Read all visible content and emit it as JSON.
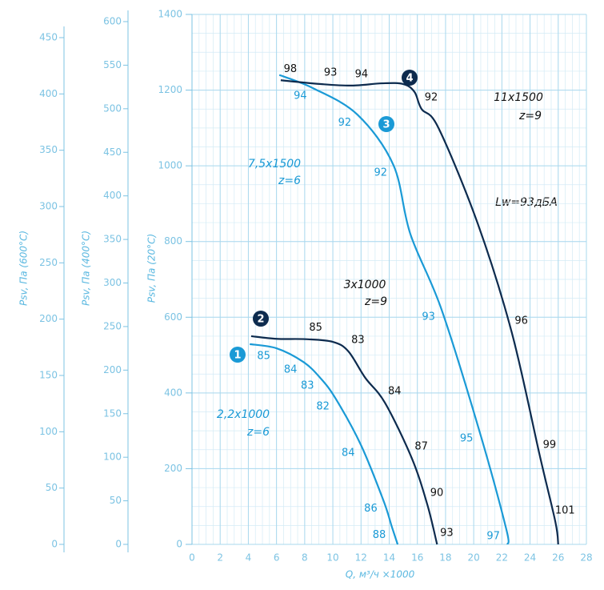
{
  "chart_data": {
    "type": "line",
    "x_title": "Q, м³/ч ×1000",
    "y_title": "Psv, Па (20°C)",
    "xlim": [
      0,
      28
    ],
    "xticks": [
      0,
      2,
      4,
      6,
      8,
      10,
      12,
      14,
      16,
      18,
      20,
      22,
      24,
      26,
      28
    ],
    "ylim": [
      0,
      1400
    ],
    "yticks": [
      0,
      200,
      400,
      600,
      800,
      1000,
      1200,
      1400
    ],
    "grid": true,
    "extra_axes": [
      {
        "title": "Psv, Па (600°C)",
        "ylim": [
          0,
          450
        ],
        "yticks": [
          0,
          50,
          100,
          150,
          200,
          250,
          300,
          350,
          400,
          450
        ]
      },
      {
        "title": "Psv, Па (400°C)",
        "ylim": [
          0,
          600
        ],
        "yticks": [
          0,
          50,
          100,
          150,
          200,
          250,
          300,
          350,
          400,
          450,
          500,
          550,
          600
        ]
      }
    ],
    "annotation": "Lw=93дБА",
    "series": [
      {
        "name": "2,2x1000",
        "z": "z=6",
        "badge": "1",
        "color": "#1a9ad6",
        "x": [
          4.1,
          6.0,
          7.9,
          9.1,
          10.2,
          12.0,
          13.6,
          14.2,
          14.6
        ],
        "values": [
          529,
          518,
          482,
          440,
          385,
          262,
          115,
          45,
          0
        ],
        "noise_labels": [
          null,
          85,
          84,
          83,
          82,
          84,
          86,
          88,
          null
        ]
      },
      {
        "name": "3x1000",
        "z": "z=9",
        "badge": "2",
        "color": "#0d2b4e",
        "x": [
          4.2,
          6,
          8.1,
          10,
          11.1,
          12.3,
          13.7,
          15.6,
          16.7,
          17.4
        ],
        "values": [
          550,
          543,
          542,
          535,
          510,
          440,
          374,
          228,
          106,
          0
        ],
        "noise_labels": [
          null,
          null,
          85,
          null,
          83,
          null,
          84,
          87,
          90,
          93
        ]
      },
      {
        "name": "7,5x1500",
        "z": "z=6",
        "badge": "3",
        "color": "#1a9ad6",
        "x": [
          6.2,
          8.6,
          11.75,
          14.3,
          15.5,
          17.7,
          20.4,
          22.3,
          22.4
        ],
        "values": [
          1240,
          1205,
          1135,
          1002,
          820,
          622,
          300,
          42,
          0
        ],
        "noise_labels": [
          null,
          94,
          92,
          92,
          null,
          93,
          95,
          97,
          null
        ]
      },
      {
        "name": "11x1500",
        "z": "z=9",
        "badge": "4",
        "color": "#0d2b4e",
        "x": [
          6.3,
          9.15,
          11.35,
          13.5,
          15,
          15.8,
          16.3,
          17.5,
          20.3,
          22.7,
          24.7,
          25.8,
          26.0
        ],
        "values": [
          1226,
          1216,
          1212,
          1218,
          1216,
          1195,
          1150,
          1100,
          846,
          560,
          233,
          59,
          0
        ],
        "noise_labels": [
          98,
          93,
          94,
          null,
          null,
          null,
          92,
          null,
          null,
          96,
          99,
          101,
          null
        ]
      }
    ]
  }
}
